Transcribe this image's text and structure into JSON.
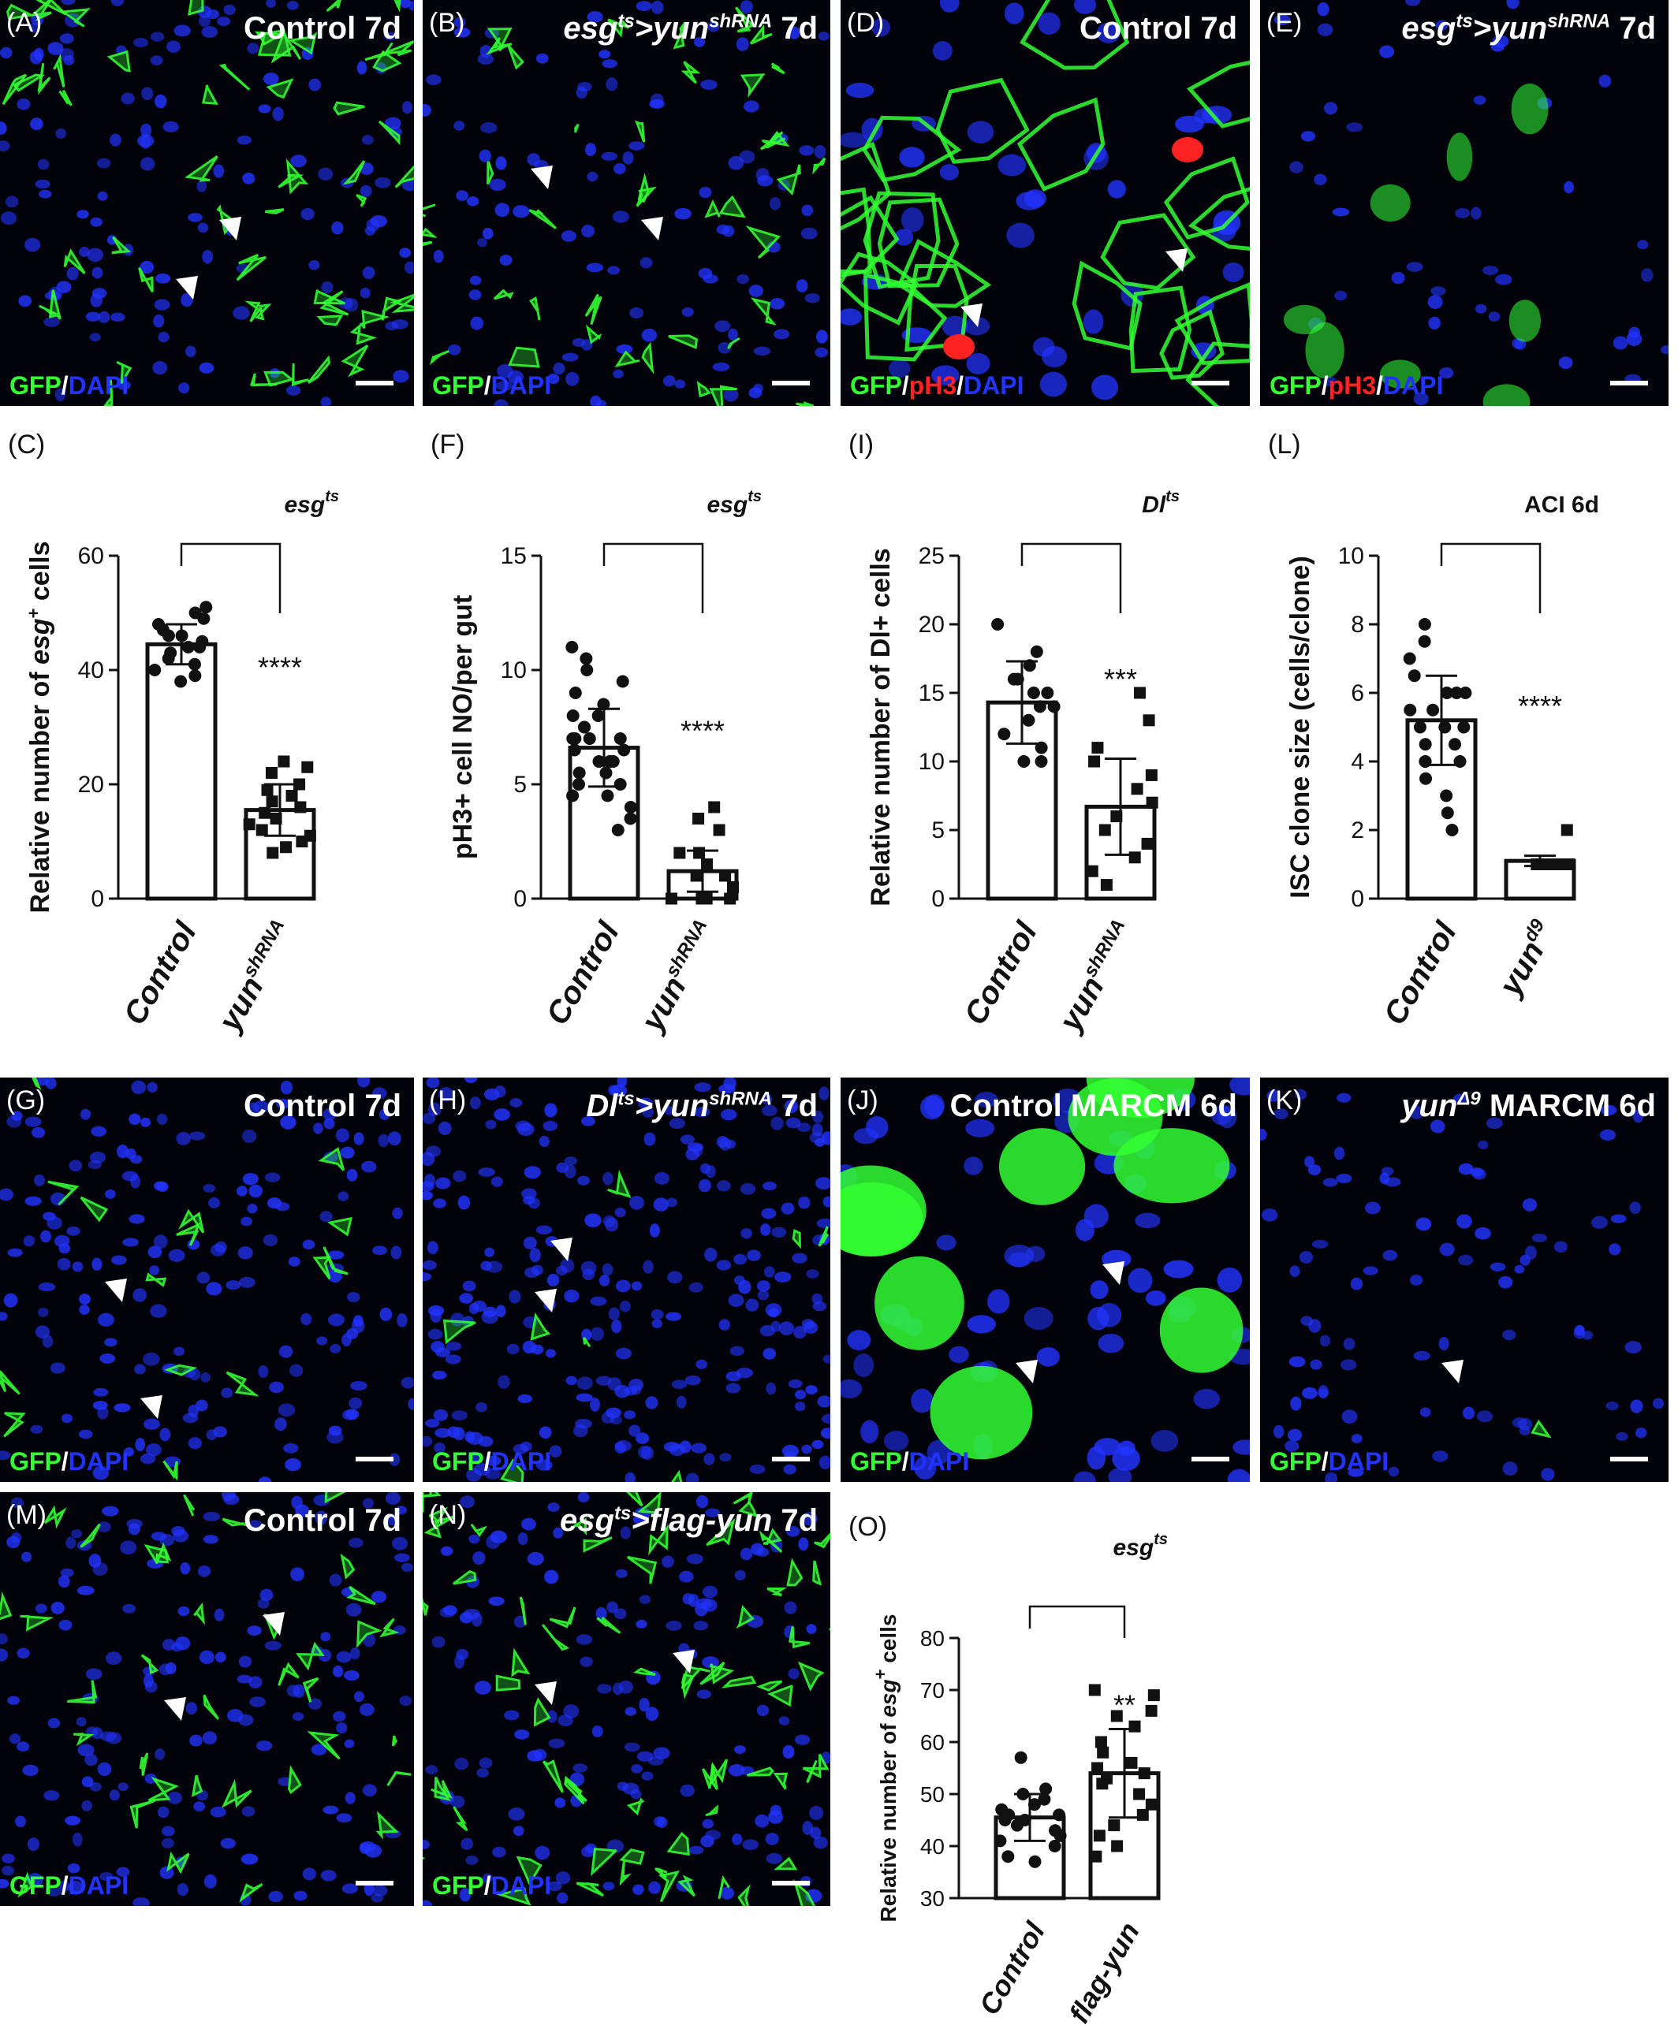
{
  "panels": [
    {
      "id": "A",
      "label": "(A)",
      "title": "Control 7d",
      "stain": [
        "GFP",
        "/",
        "DAPI"
      ]
    },
    {
      "id": "B",
      "label": "(B)",
      "title_parts": [
        "esg",
        "ts",
        ">yun",
        "shRNA",
        " 7d"
      ],
      "stain": [
        "GFP",
        "/",
        "DAPI"
      ]
    },
    {
      "id": "D",
      "label": "(D)",
      "title": "Control 7d",
      "stain": [
        "GFP",
        "/",
        "pH3",
        "/",
        "DAPI"
      ]
    },
    {
      "id": "E",
      "label": "(E)",
      "title_parts": [
        "esg",
        "ts",
        ">yun",
        "shRNA",
        " 7d"
      ],
      "stain": [
        "GFP",
        "/",
        "pH3",
        "/",
        "DAPI"
      ]
    },
    {
      "id": "G",
      "label": "(G)",
      "title": "Control 7d",
      "stain": [
        "GFP",
        "/",
        "DAPI"
      ]
    },
    {
      "id": "H",
      "label": "(H)",
      "title_parts": [
        "Dl",
        "ts",
        ">yun",
        "shRNA",
        " 7d"
      ],
      "stain": [
        "GFP",
        "/",
        "DAPI"
      ]
    },
    {
      "id": "J",
      "label": "(J)",
      "title": "Control MARCM  6d",
      "stain": [
        "GFP",
        "/",
        "DAPI"
      ]
    },
    {
      "id": "K",
      "label": "(K)",
      "title_parts": [
        "yun",
        "Δ9",
        " MARCM 6d"
      ],
      "stain": [
        "GFP",
        "/",
        "DAPI"
      ]
    },
    {
      "id": "M",
      "label": "(M)",
      "title": "Control 7d",
      "stain": [
        "GFP",
        "/",
        "DAPI"
      ]
    },
    {
      "id": "N",
      "label": "(N)",
      "title_parts": [
        "esg",
        "ts",
        ">flag-yun",
        " 7d"
      ],
      "stain": [
        "GFP",
        "/",
        "DAPI"
      ]
    }
  ],
  "chart_data": [
    {
      "id": "C",
      "label": "(C)",
      "type": "bar",
      "genotype": "esg",
      "genotype_sup": "ts",
      "ylabel": "Relative number of esg+ cells",
      "ylabel_parts": [
        "Relative number of ",
        "esg",
        "+",
        " cells"
      ],
      "ylim": [
        0,
        60
      ],
      "yticks": [
        0,
        20,
        40,
        60
      ],
      "categories": [
        "Control",
        "yun"
      ],
      "category_sup": [
        "",
        "shRNA"
      ],
      "values": [
        44.5,
        15.5
      ],
      "errors": [
        3.5,
        4.5
      ],
      "significance": "****",
      "points": [
        [
          51,
          50,
          49,
          48,
          47,
          46,
          45,
          44,
          44,
          43,
          42,
          41,
          40,
          39,
          38,
          46
        ],
        [
          24,
          23,
          22,
          20,
          19,
          17,
          16,
          15,
          14,
          13,
          12,
          11,
          10,
          9,
          8,
          18
        ]
      ],
      "point_shape": [
        "circle",
        "square"
      ]
    },
    {
      "id": "F",
      "label": "(F)",
      "type": "bar",
      "genotype": "esg",
      "genotype_sup": "ts",
      "ylabel": "pH3+ cell NO/per gut",
      "ylim": [
        0,
        15
      ],
      "yticks": [
        0,
        5,
        10,
        15
      ],
      "categories": [
        "Control",
        "yun"
      ],
      "category_sup": [
        "",
        "shRNA"
      ],
      "values": [
        6.6,
        1.2
      ],
      "errors": [
        1.7,
        0.9
      ],
      "significance": "****",
      "points": [
        [
          11,
          10.5,
          10,
          9.5,
          9,
          8.5,
          8,
          7.5,
          7.5,
          7,
          7,
          7,
          6.5,
          6.5,
          6,
          6,
          6,
          5.5,
          5.5,
          5,
          5,
          4.5,
          4.5,
          4,
          3.5,
          3,
          8,
          7,
          6
        ],
        [
          4,
          3.5,
          3,
          2,
          2,
          1.5,
          1,
          1,
          1,
          0.5,
          0.5,
          0,
          0,
          0,
          0
        ]
      ],
      "point_shape": [
        "circle",
        "square"
      ]
    },
    {
      "id": "I",
      "label": "(I)",
      "type": "bar",
      "genotype": "Dl",
      "genotype_sup": "ts",
      "ylabel": "Relative number of Dl+ cells",
      "ylim": [
        0,
        25
      ],
      "yticks": [
        0,
        5,
        10,
        15,
        20,
        25
      ],
      "categories": [
        "Control",
        "yun"
      ],
      "category_sup": [
        "",
        "shRNA"
      ],
      "values": [
        14.3,
        6.7
      ],
      "errors": [
        3.0,
        3.5
      ],
      "significance": "***",
      "points": [
        [
          20,
          18,
          17,
          16,
          15,
          15,
          14,
          14,
          13,
          12,
          11,
          10,
          10,
          16
        ],
        [
          15,
          13,
          11,
          10,
          9,
          8,
          7,
          6,
          5,
          4,
          3,
          2,
          1
        ]
      ],
      "point_shape": [
        "circle",
        "square"
      ]
    },
    {
      "id": "L",
      "label": "(L)",
      "type": "bar",
      "genotype": "ACI 6d",
      "ylabel": "ISC clone size (cells/clone)",
      "ylim": [
        0,
        10
      ],
      "yticks": [
        0,
        2,
        4,
        6,
        8,
        10
      ],
      "categories": [
        "Control",
        "yun"
      ],
      "category_sup": [
        "",
        "d9"
      ],
      "values": [
        5.2,
        1.1
      ],
      "errors": [
        1.3,
        0.15
      ],
      "significance": "****",
      "points": [
        [
          8,
          7.5,
          7,
          6.5,
          6,
          6,
          6,
          5.5,
          5.5,
          5,
          5,
          5,
          4.5,
          4.5,
          4,
          4,
          4,
          3.5,
          3,
          2.5,
          2
        ],
        [
          2,
          1,
          1,
          1,
          1,
          1,
          1
        ]
      ],
      "point_shape": [
        "circle",
        "square"
      ]
    },
    {
      "id": "O",
      "label": "(O)",
      "type": "bar",
      "genotype": "esg",
      "genotype_sup": "ts",
      "ylabel": "Relative number of esg+ cells",
      "ylabel_parts": [
        "Relative number of ",
        "esg",
        "+",
        " cells"
      ],
      "ylim": [
        30,
        80
      ],
      "yticks": [
        30,
        40,
        50,
        60,
        70,
        80
      ],
      "categories": [
        "Control",
        "flag-yun"
      ],
      "category_sup": [
        "",
        ""
      ],
      "values": [
        45.5,
        54
      ],
      "errors": [
        4.5,
        8.5
      ],
      "significance": "**",
      "points": [
        [
          57,
          51,
          50,
          49,
          48,
          47,
          46,
          46,
          45,
          45,
          44,
          43,
          42,
          41,
          40,
          38,
          37
        ],
        [
          70,
          69,
          66,
          65,
          63,
          60,
          58,
          56,
          55,
          54,
          53,
          52,
          50,
          48,
          46,
          44,
          42,
          40,
          38
        ]
      ],
      "point_shape": [
        "circle",
        "square"
      ]
    }
  ],
  "colors": {
    "gfp": "#33ff33",
    "dapi": "#2233ff",
    "ph3": "#ff2222",
    "image_bg": "#02030a"
  }
}
